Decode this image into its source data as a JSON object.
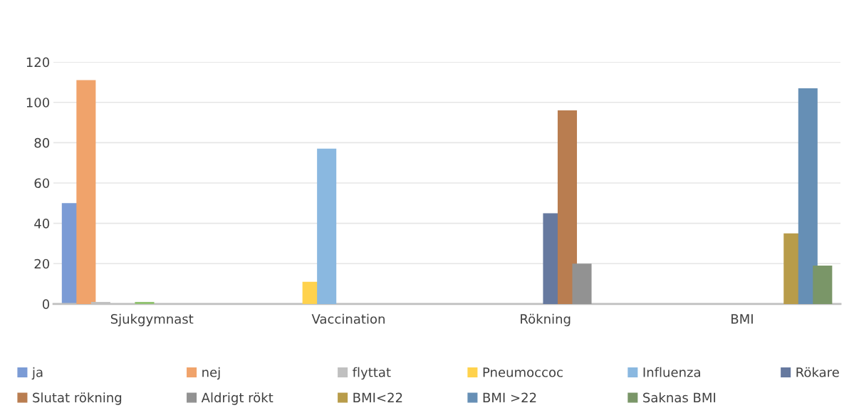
{
  "chart_data": {
    "type": "bar",
    "categories": [
      "Sjukgymnast",
      "Vaccination",
      "Rökning",
      "BMI"
    ],
    "series": [
      {
        "name": "ja",
        "color": "#7b9bd5",
        "values": [
          50,
          null,
          null,
          null
        ]
      },
      {
        "name": "nej",
        "color": "#f0a36b",
        "values": [
          111,
          null,
          null,
          null
        ]
      },
      {
        "name": "flyttat",
        "color": "#c0c0c0",
        "values": [
          1,
          null,
          null,
          null
        ]
      },
      {
        "name": "Pneumoccoc",
        "color": "#ffd24d",
        "values": [
          null,
          11,
          null,
          null
        ]
      },
      {
        "name": "Influenza",
        "color": "#8ab8e0",
        "values": [
          null,
          77,
          null,
          null
        ]
      },
      {
        "color": "#8fc26e",
        "values": [
          1,
          null,
          null,
          null
        ]
      },
      {
        "name": "Rökare",
        "color": "#66799f",
        "values": [
          null,
          null,
          45,
          null
        ]
      },
      {
        "name": "Slutat rökning",
        "color": "#b97d50",
        "values": [
          null,
          null,
          96,
          null
        ]
      },
      {
        "name": "Aldrigt rökt",
        "color": "#929292",
        "values": [
          null,
          null,
          20,
          null
        ]
      },
      {
        "name": "BMI<22",
        "color": "#b89c4a",
        "values": [
          null,
          null,
          null,
          35
        ]
      },
      {
        "name": "BMI >22",
        "color": "#668fb5",
        "values": [
          null,
          null,
          null,
          107
        ]
      },
      {
        "name": "Saknas BMI",
        "color": "#7a9668",
        "values": [
          null,
          null,
          null,
          19
        ]
      }
    ],
    "ylim": [
      0,
      120
    ],
    "yticks": [
      0,
      20,
      40,
      60,
      80,
      100,
      120
    ],
    "grid": "y",
    "legend": "bottom"
  }
}
